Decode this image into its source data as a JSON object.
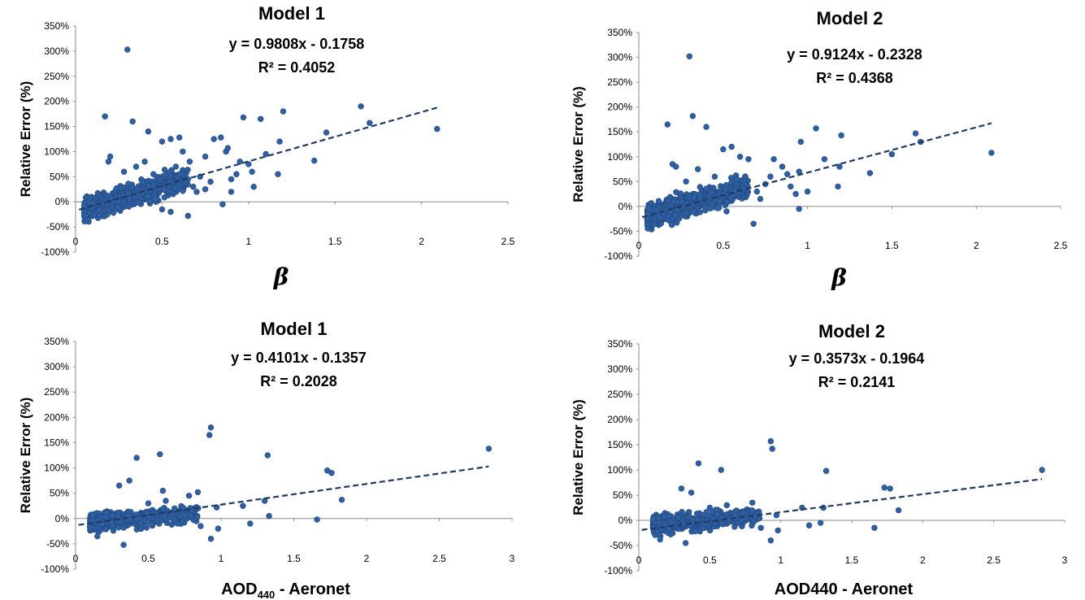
{
  "chart_data": [
    {
      "type": "scatter",
      "title": "Model 1",
      "equation": "y = 0.9808x - 0.1758",
      "r_squared": "R² = 0.4052",
      "ylabel": "Relative Error (%)",
      "xlabel": "β",
      "xlim": [
        0,
        2.5
      ],
      "ylim": [
        -100,
        350
      ],
      "x_ticks": [
        "0",
        "0.5",
        "1",
        "1.5",
        "2",
        "2.5"
      ],
      "y_ticks": [
        "-100%",
        "-50%",
        "0%",
        "50%",
        "100%",
        "150%",
        "200%",
        "250%",
        "300%",
        "350%"
      ],
      "trendline": {
        "slope": 0.9808,
        "intercept": -0.1758
      },
      "points": [
        [
          0.3,
          303
        ],
        [
          0.17,
          170
        ],
        [
          0.33,
          160
        ],
        [
          0.42,
          140
        ],
        [
          0.2,
          90
        ],
        [
          0.19,
          80
        ],
        [
          0.5,
          120
        ],
        [
          0.55,
          125
        ],
        [
          0.6,
          128
        ],
        [
          0.62,
          100
        ],
        [
          0.75,
          90
        ],
        [
          0.8,
          125
        ],
        [
          0.84,
          128
        ],
        [
          0.87,
          100
        ],
        [
          0.88,
          107
        ],
        [
          0.97,
          168
        ],
        [
          1.07,
          165
        ],
        [
          1.18,
          120
        ],
        [
          1.2,
          180
        ],
        [
          1.1,
          95
        ],
        [
          1.17,
          55
        ],
        [
          1.38,
          82
        ],
        [
          1.45,
          138
        ],
        [
          1.65,
          190
        ],
        [
          1.7,
          157
        ],
        [
          2.09,
          145
        ],
        [
          0.95,
          80
        ],
        [
          1.02,
          60
        ],
        [
          0.9,
          20
        ],
        [
          0.85,
          -5
        ],
        [
          0.7,
          20
        ],
        [
          0.65,
          -28
        ],
        [
          0.72,
          50
        ],
        [
          0.78,
          40
        ],
        [
          0.66,
          80
        ],
        [
          0.58,
          70
        ],
        [
          0.45,
          55
        ],
        [
          0.35,
          70
        ],
        [
          0.28,
          60
        ],
        [
          0.4,
          80
        ],
        [
          0.6,
          55
        ],
        [
          0.68,
          30
        ],
        [
          0.75,
          25
        ],
        [
          0.9,
          45
        ],
        [
          0.93,
          55
        ],
        [
          1.0,
          75
        ],
        [
          1.03,
          30
        ],
        [
          0.55,
          -20
        ],
        [
          0.5,
          -15
        ],
        [
          0.46,
          5
        ]
      ]
    },
    {
      "type": "scatter",
      "title": "Model 2",
      "equation": "y = 0.9124x - 0.2328",
      "r_squared": "R² = 0.4368",
      "ylabel": "Relative Error (%)",
      "xlabel": "β",
      "xlim": [
        0,
        2.5
      ],
      "ylim": [
        -100,
        350
      ],
      "x_ticks": [
        "0",
        "0.5",
        "1",
        "1.5",
        "2",
        "2.5"
      ],
      "y_ticks": [
        "-100%",
        "-50%",
        "0%",
        "50%",
        "100%",
        "150%",
        "200%",
        "250%",
        "300%",
        "350%"
      ],
      "trendline": {
        "slope": 0.9124,
        "intercept": -0.2328
      },
      "points": [
        [
          0.3,
          302
        ],
        [
          0.32,
          182
        ],
        [
          0.17,
          165
        ],
        [
          0.4,
          160
        ],
        [
          0.2,
          85
        ],
        [
          0.22,
          80
        ],
        [
          0.5,
          115
        ],
        [
          0.55,
          120
        ],
        [
          0.6,
          100
        ],
        [
          0.65,
          95
        ],
        [
          0.8,
          95
        ],
        [
          0.85,
          80
        ],
        [
          0.88,
          65
        ],
        [
          0.95,
          70
        ],
        [
          0.96,
          130
        ],
        [
          1.05,
          157
        ],
        [
          1.1,
          95
        ],
        [
          1.2,
          143
        ],
        [
          1.19,
          80
        ],
        [
          1.18,
          40
        ],
        [
          1.37,
          67
        ],
        [
          1.5,
          105
        ],
        [
          1.64,
          147
        ],
        [
          1.67,
          130
        ],
        [
          2.09,
          108
        ],
        [
          0.68,
          -35
        ],
        [
          0.7,
          30
        ],
        [
          0.75,
          45
        ],
        [
          0.78,
          60
        ],
        [
          0.9,
          40
        ],
        [
          0.93,
          25
        ],
        [
          1.0,
          30
        ],
        [
          0.58,
          55
        ],
        [
          0.45,
          60
        ],
        [
          0.35,
          75
        ],
        [
          0.28,
          50
        ],
        [
          0.62,
          35
        ],
        [
          0.72,
          15
        ],
        [
          0.95,
          -5
        ],
        [
          0.52,
          -10
        ],
        [
          0.48,
          10
        ]
      ]
    },
    {
      "type": "scatter",
      "title": "Model 1",
      "equation": "y = 0.4101x - 0.1357",
      "r_squared": "R² = 0.2028",
      "ylabel": "Relative Error (%)",
      "xlabel": "AOD440 - Aeronet",
      "xlabel_main": "AOD",
      "xlabel_sub": "440",
      "xlabel_suffix": " - Aeronet",
      "xlim": [
        0,
        3
      ],
      "ylim": [
        -100,
        350
      ],
      "x_ticks": [
        "0",
        "0.5",
        "1",
        "1.5",
        "2",
        "2.5",
        "3"
      ],
      "y_ticks": [
        "-100%",
        "-50%",
        "0%",
        "50%",
        "100%",
        "150%",
        "200%",
        "250%",
        "300%",
        "350%"
      ],
      "trendline": {
        "slope": 0.4101,
        "intercept": -0.1357
      },
      "points": [
        [
          0.93,
          180
        ],
        [
          0.92,
          165
        ],
        [
          0.58,
          127
        ],
        [
          0.42,
          120
        ],
        [
          1.32,
          125
        ],
        [
          2.84,
          138
        ],
        [
          1.73,
          95
        ],
        [
          1.76,
          90
        ],
        [
          0.37,
          75
        ],
        [
          0.3,
          65
        ],
        [
          0.84,
          52
        ],
        [
          0.78,
          45
        ],
        [
          0.6,
          55
        ],
        [
          1.83,
          37
        ],
        [
          1.3,
          35
        ],
        [
          1.15,
          25
        ],
        [
          0.97,
          22
        ],
        [
          1.33,
          5
        ],
        [
          1.66,
          -2
        ],
        [
          1.2,
          -10
        ],
        [
          0.93,
          -40
        ],
        [
          0.98,
          -20
        ],
        [
          0.86,
          -15
        ],
        [
          0.7,
          -10
        ],
        [
          0.33,
          -52
        ],
        [
          0.15,
          -35
        ],
        [
          0.62,
          35
        ],
        [
          0.68,
          20
        ],
        [
          0.72,
          5
        ],
        [
          0.5,
          30
        ],
        [
          0.45,
          -20
        ]
      ]
    },
    {
      "type": "scatter",
      "title": "Model 2",
      "equation": "y = 0.3573x - 0.1964",
      "r_squared": "R² = 0.2141",
      "ylabel": "Relative Error (%)",
      "xlabel": "AOD440 - Aeronet",
      "xlim": [
        0,
        3
      ],
      "ylim": [
        -100,
        350
      ],
      "x_ticks": [
        "0",
        "0.5",
        "1",
        "1.5",
        "2",
        "2.5",
        "3"
      ],
      "y_ticks": [
        "-100%",
        "-50%",
        "0%",
        "50%",
        "100%",
        "150%",
        "200%",
        "250%",
        "300%",
        "350%"
      ],
      "trendline": {
        "slope": 0.3573,
        "intercept": -0.1964
      },
      "points": [
        [
          0.93,
          157
        ],
        [
          0.94,
          142
        ],
        [
          0.42,
          113
        ],
        [
          0.58,
          100
        ],
        [
          1.32,
          98
        ],
        [
          2.84,
          100
        ],
        [
          1.73,
          65
        ],
        [
          1.77,
          63
        ],
        [
          0.3,
          63
        ],
        [
          0.37,
          55
        ],
        [
          0.8,
          35
        ],
        [
          1.83,
          20
        ],
        [
          1.3,
          25
        ],
        [
          1.15,
          25
        ],
        [
          0.97,
          10
        ],
        [
          1.28,
          -5
        ],
        [
          1.66,
          -15
        ],
        [
          1.2,
          -10
        ],
        [
          0.93,
          -40
        ],
        [
          0.98,
          -20
        ],
        [
          0.86,
          -15
        ],
        [
          0.7,
          -5
        ],
        [
          0.33,
          -45
        ],
        [
          0.15,
          -38
        ],
        [
          0.62,
          30
        ],
        [
          0.68,
          10
        ],
        [
          0.72,
          0
        ],
        [
          0.5,
          25
        ],
        [
          0.45,
          -15
        ]
      ]
    }
  ]
}
